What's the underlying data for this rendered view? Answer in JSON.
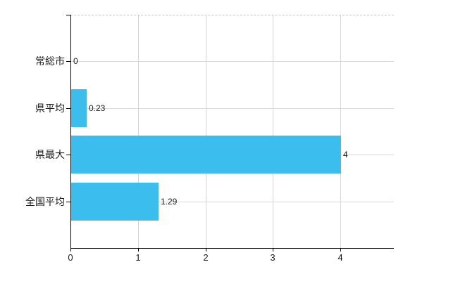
{
  "chart_data": {
    "type": "bar",
    "orientation": "horizontal",
    "categories": [
      "常総市",
      "県平均",
      "県最大",
      "全国平均"
    ],
    "values": [
      0,
      0.23,
      4,
      1.29
    ],
    "value_labels": [
      "0",
      "0.23",
      "4",
      "1.29"
    ],
    "x_ticks": [
      0,
      1,
      2,
      3,
      4
    ],
    "x_tick_labels": [
      "0",
      "1",
      "2",
      "3",
      "4"
    ],
    "xlim": [
      0,
      4.79
    ],
    "grid": true,
    "legend_position": "none",
    "colors": {
      "bar": "#3BBDEE",
      "vertical_gridline": "#d4d4d4",
      "horizontal_gridline": "#d8d8d8",
      "plot_top_border": "#c8c8c8",
      "axis": "#000000",
      "text": "#1a1a1a"
    }
  }
}
